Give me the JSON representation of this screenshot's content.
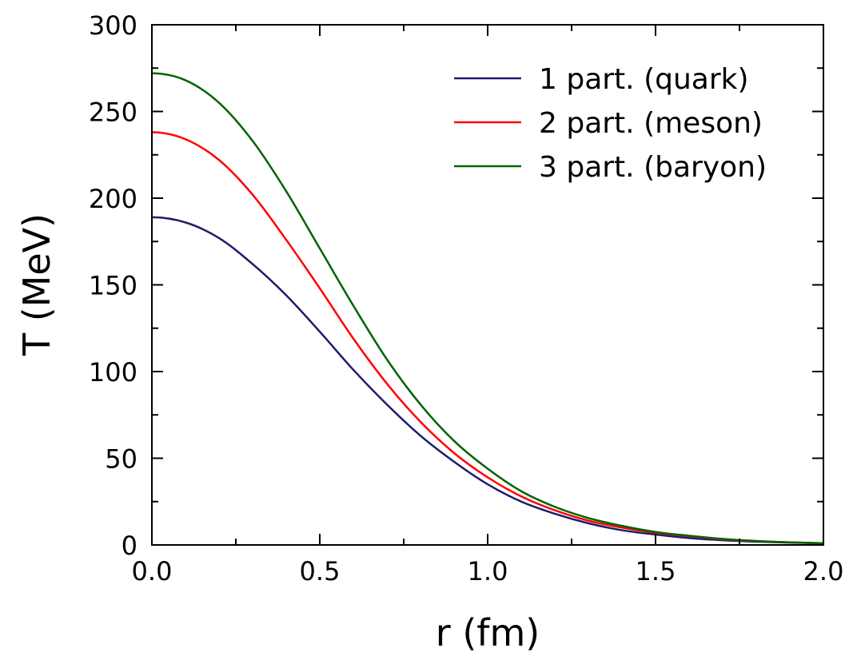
{
  "chart_data": {
    "type": "line",
    "xlabel": "r (fm)",
    "ylabel": "T (MeV)",
    "xlim": [
      0,
      2.0
    ],
    "ylim": [
      0,
      300
    ],
    "x_ticks": [
      0.0,
      0.5,
      1.0,
      1.5,
      2.0
    ],
    "x_tick_labels": [
      "0.0",
      "0.5",
      "1.0",
      "1.5",
      "2.0"
    ],
    "x_minor_step": 0.25,
    "y_ticks": [
      0,
      50,
      100,
      150,
      200,
      250,
      300
    ],
    "y_tick_labels": [
      "0",
      "50",
      "100",
      "150",
      "200",
      "250",
      "300"
    ],
    "y_minor_step": 25,
    "legend_position": "top-right",
    "grid": false,
    "x": [
      0.0,
      0.1,
      0.2,
      0.3,
      0.4,
      0.5,
      0.6,
      0.7,
      0.8,
      0.9,
      1.0,
      1.1,
      1.2,
      1.3,
      1.4,
      1.5,
      1.6,
      1.7,
      1.8,
      1.9,
      2.0
    ],
    "series": [
      {
        "name": "1 part. (quark)",
        "color": "#1c1c6e",
        "values": [
          189,
          186,
          177,
          162,
          144,
          123,
          101,
          81,
          63,
          48,
          35,
          25,
          18,
          12.5,
          8.5,
          6,
          4,
          2.7,
          1.9,
          1.3,
          1
        ]
      },
      {
        "name": "2 part. (meson)",
        "color": "#ff0000",
        "values": [
          238,
          234,
          222,
          202,
          176,
          148,
          119,
          93,
          71,
          53,
          39,
          28,
          20,
          14,
          10,
          7,
          5,
          3.3,
          2.2,
          1.5,
          1
        ]
      },
      {
        "name": "3 part. (baryon)",
        "color": "#006400",
        "values": [
          272,
          268,
          255,
          233,
          204,
          171,
          138,
          107,
          81,
          60,
          44,
          31,
          22,
          15.5,
          11,
          7.5,
          5.3,
          3.5,
          2.3,
          1.5,
          1
        ]
      }
    ]
  }
}
